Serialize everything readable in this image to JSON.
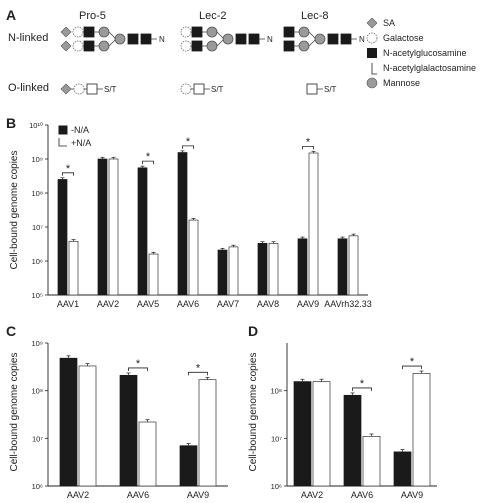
{
  "panel_labels": [
    "A",
    "B",
    "C",
    "D"
  ],
  "panel_a": {
    "columns": [
      "Pro-5",
      "Lec-2",
      "Lec-8"
    ],
    "row_labels": [
      "N-linked",
      "O-linked"
    ],
    "n_terminal": "N",
    "o_terminal": "S/T",
    "legend": [
      "SA",
      "Galactose",
      "N-acetylglucosamine",
      "N-acetylglalactosamine",
      "Mannose"
    ],
    "colors": {
      "sa": "#9a9a9a",
      "mannose": "#9a9a9a",
      "glcnac": "#1a1a1a"
    }
  },
  "chart_data": [
    {
      "panel": "B",
      "type": "bar",
      "ylabel": "Cell-bound genome copies",
      "scale": "log",
      "ylim": [
        100000,
        10000000000
      ],
      "yticks": [
        "10⁵",
        "10⁶",
        "10⁷",
        "10⁸",
        "10⁹",
        "10¹⁰"
      ],
      "categories": [
        "AAV1",
        "AAV2",
        "AAV5",
        "AAV6",
        "AAV7",
        "AAV8",
        "AAV9",
        "AAVrh32.33"
      ],
      "legend": [
        "-N/A",
        "+N/A"
      ],
      "series": [
        {
          "name": "-N/A",
          "color": "#1a1a1a",
          "values": [
            250000000,
            1000000000,
            550000000,
            1550000000,
            2100000,
            3300000,
            4500000,
            4500000
          ]
        },
        {
          "name": "+N/A",
          "color": "#ffffff",
          "values": [
            3800000,
            1000000000,
            1600000,
            16000000,
            2600000,
            3300000,
            1500000000,
            5500000
          ]
        }
      ],
      "significance": [
        0,
        2,
        3,
        6
      ]
    },
    {
      "panel": "C",
      "type": "bar",
      "ylabel": "Cell-bound genome copies",
      "scale": "log",
      "ylim": [
        1000000,
        1000000000
      ],
      "yticks": [
        "10⁶",
        "10⁷",
        "10⁸",
        "10⁹"
      ],
      "categories": [
        "AAV2",
        "AAV6",
        "AAV9"
      ],
      "series": [
        {
          "name": "-N/A",
          "color": "#1a1a1a",
          "values": [
            480000000,
            210000000,
            7000000
          ]
        },
        {
          "name": "+N/A",
          "color": "#ffffff",
          "values": [
            330000000,
            22000000,
            170000000
          ]
        }
      ],
      "significance": [
        1,
        2
      ]
    },
    {
      "panel": "D",
      "type": "bar",
      "ylabel": "Cell-bound genome copies",
      "scale": "log",
      "ylim": [
        1000000,
        1000000000
      ],
      "yticks": [
        "10⁶",
        "10⁷",
        "10⁸"
      ],
      "ytick_values": [
        1000000,
        10000000,
        100000000
      ],
      "categories": [
        "AAV2",
        "AAV6",
        "AAV9"
      ],
      "series": [
        {
          "name": "-N/A",
          "color": "#1a1a1a",
          "values": [
            155000000,
            80000000,
            5200000
          ]
        },
        {
          "name": "+N/A",
          "color": "#ffffff",
          "values": [
            155000000,
            11000000,
            230000000
          ]
        }
      ],
      "significance": [
        1,
        2
      ]
    }
  ]
}
